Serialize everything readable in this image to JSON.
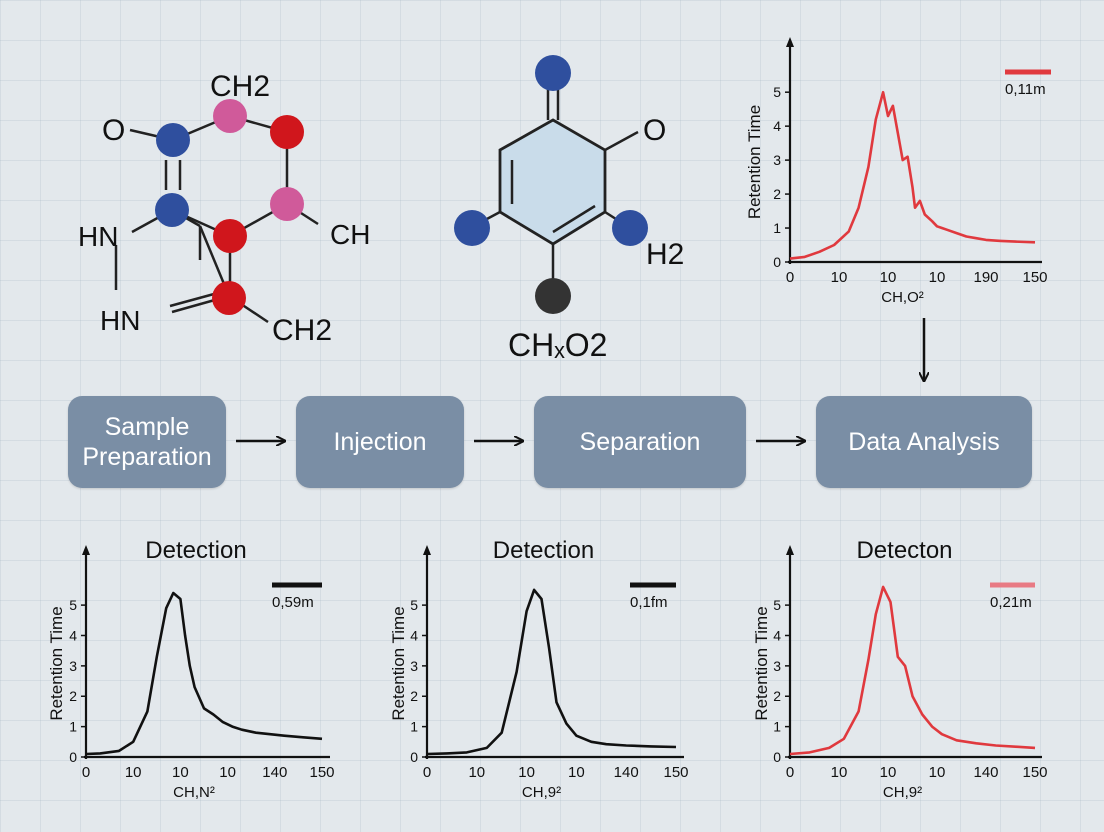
{
  "molecule_a": {
    "labels": [
      "CH2",
      "O",
      "HN",
      "CH",
      "HN",
      "CH2"
    ]
  },
  "molecule_b": {
    "labels": [
      "O",
      "H2"
    ],
    "formula": "CHₓO2"
  },
  "flow": {
    "steps": [
      "Sample\nPreparation",
      "Injection",
      "Separation",
      "Data Analysis"
    ]
  },
  "colors": {
    "background": "#e3e8ec",
    "node": "#7a8ea5",
    "atom_blue": "#2f4f9e",
    "atom_red": "#d0161c",
    "atom_pink": "#d05a9a",
    "atom_black": "#333333",
    "trace_red": "#e0393e",
    "trace_black": "#111111"
  },
  "chart_data": [
    {
      "type": "line",
      "title": "",
      "ylabel": "Retention Time",
      "xlabel": "CH,O²",
      "x_tick_labels": [
        "0",
        "10",
        "10",
        "10",
        "190",
        "150"
      ],
      "y_ticks": [
        0,
        1,
        2,
        3,
        4,
        5
      ],
      "ylim": [
        0,
        5.3
      ],
      "legend": "0,11m",
      "color": "#e0393e",
      "series": [
        {
          "x": [
            0,
            0.3,
            0.6,
            0.9,
            1.2,
            1.4,
            1.6,
            1.75,
            1.9,
            2.0,
            2.1,
            2.2,
            2.3,
            2.4,
            2.5,
            2.55,
            2.65,
            2.75,
            2.9,
            3.0,
            3.1,
            3.2,
            3.4,
            3.6,
            3.8,
            4.0,
            4.3,
            4.6,
            5.0
          ],
          "y": [
            0.1,
            0.15,
            0.3,
            0.5,
            0.9,
            1.6,
            2.8,
            4.2,
            5.0,
            4.3,
            4.6,
            3.8,
            3.0,
            3.1,
            2.2,
            1.6,
            1.8,
            1.4,
            1.2,
            1.05,
            1.0,
            0.95,
            0.85,
            0.75,
            0.7,
            0.65,
            0.62,
            0.6,
            0.58
          ]
        }
      ]
    },
    {
      "type": "line",
      "title": "Detection",
      "ylabel": "Retention Time",
      "xlabel": "CH,N²",
      "x_tick_labels": [
        "0",
        "10",
        "10",
        "10",
        "140",
        "150"
      ],
      "y_ticks": [
        0,
        1,
        2,
        3,
        4,
        5
      ],
      "ylim": [
        0,
        5.3
      ],
      "legend": "0,59m",
      "color": "#111111",
      "series": [
        {
          "x": [
            0,
            0.3,
            0.7,
            1.0,
            1.3,
            1.5,
            1.7,
            1.85,
            2.0,
            2.1,
            2.2,
            2.3,
            2.5,
            2.7,
            2.9,
            3.1,
            3.3,
            3.6,
            3.9,
            4.2,
            4.6,
            5.0
          ],
          "y": [
            0.1,
            0.12,
            0.2,
            0.5,
            1.5,
            3.3,
            4.9,
            5.4,
            5.2,
            4.0,
            3.0,
            2.3,
            1.6,
            1.4,
            1.15,
            1.0,
            0.9,
            0.8,
            0.75,
            0.7,
            0.65,
            0.6
          ]
        }
      ]
    },
    {
      "type": "line",
      "title": "Detection",
      "ylabel": "Retention Time",
      "xlabel": "CH,9²",
      "x_tick_labels": [
        "0",
        "10",
        "10",
        "10",
        "140",
        "150"
      ],
      "y_ticks": [
        0,
        1,
        2,
        3,
        4,
        5
      ],
      "ylim": [
        0,
        5.3
      ],
      "legend": "0,1fm",
      "color": "#111111",
      "series": [
        {
          "x": [
            0,
            0.4,
            0.8,
            1.2,
            1.5,
            1.8,
            2.0,
            2.15,
            2.3,
            2.45,
            2.6,
            2.8,
            3.0,
            3.3,
            3.6,
            4.0,
            4.5,
            5.0
          ],
          "y": [
            0.1,
            0.12,
            0.15,
            0.3,
            0.8,
            2.8,
            4.8,
            5.5,
            5.2,
            3.6,
            1.8,
            1.1,
            0.7,
            0.5,
            0.42,
            0.38,
            0.35,
            0.33
          ]
        }
      ]
    },
    {
      "type": "line",
      "title": "Detecton",
      "ylabel": "Retention Time",
      "xlabel": "CH,9²",
      "x_tick_labels": [
        "0",
        "10",
        "10",
        "10",
        "140",
        "150"
      ],
      "y_ticks": [
        0,
        1,
        2,
        3,
        4,
        5
      ],
      "ylim": [
        0,
        5.3
      ],
      "legend": "0,21m",
      "color": "#e0393e",
      "legend_color": "#e87a84",
      "series": [
        {
          "x": [
            0,
            0.4,
            0.8,
            1.1,
            1.4,
            1.6,
            1.75,
            1.9,
            2.05,
            2.2,
            2.35,
            2.5,
            2.7,
            2.9,
            3.1,
            3.4,
            3.8,
            4.2,
            4.6,
            5.0
          ],
          "y": [
            0.1,
            0.15,
            0.3,
            0.6,
            1.5,
            3.2,
            4.7,
            5.6,
            5.1,
            3.3,
            3.0,
            2.0,
            1.4,
            1.0,
            0.75,
            0.55,
            0.45,
            0.38,
            0.34,
            0.3
          ]
        }
      ]
    }
  ]
}
